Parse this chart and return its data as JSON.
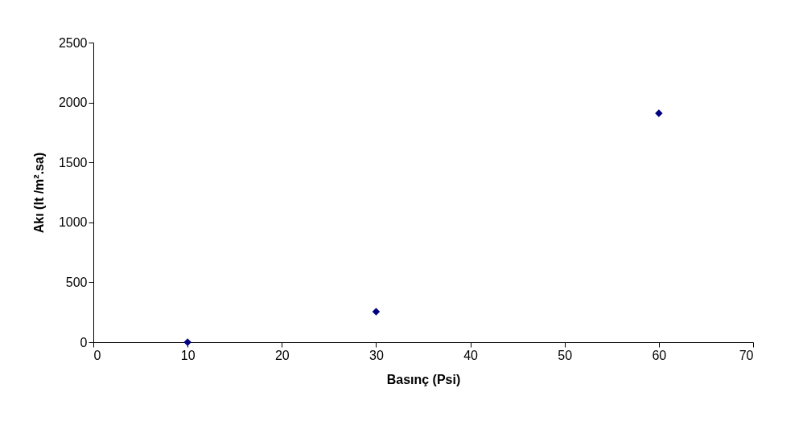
{
  "chart_data": {
    "type": "scatter",
    "xlabel": "Basınç (Psi)",
    "ylabel": "Akı (lt /m².sa)",
    "x": [
      10,
      30,
      60
    ],
    "series": [
      {
        "color": "#000080",
        "values": [
          0,
          255,
          1910
        ]
      }
    ],
    "xlim": [
      0,
      70
    ],
    "xticks": [
      0,
      10,
      20,
      30,
      40,
      50,
      60,
      70
    ],
    "ylim": [
      0,
      2500
    ],
    "yticks": [
      0,
      500,
      1000,
      1500,
      2000,
      2500
    ],
    "grid": false,
    "marker": "diamond"
  }
}
